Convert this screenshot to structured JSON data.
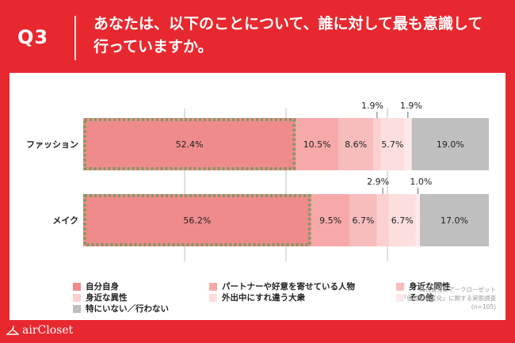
{
  "header": {
    "question_label": "Q3",
    "question_line1": "あなたは、以下のことについて、誰に対して最も意識して",
    "question_line2": "行っていますか。"
  },
  "chart_data": {
    "type": "bar",
    "orientation": "horizontal",
    "stacked": true,
    "categories": [
      "ファッション",
      "メイク"
    ],
    "series": [
      {
        "name": "自分自身",
        "values": [
          52.4,
          56.2
        ],
        "color": "#f08b8b",
        "highlight": true
      },
      {
        "name": "パートナーや好意を寄せている人物",
        "values": [
          10.5,
          9.5
        ],
        "color": "#f7a9a9"
      },
      {
        "name": "身近な同性",
        "values": [
          8.6,
          6.7
        ],
        "color": "#f7bcbc"
      },
      {
        "name": "身近な異性",
        "values": [
          1.9,
          2.9
        ],
        "color": "#fad0d0"
      },
      {
        "name": "外出中にすれ違う大衆",
        "values": [
          5.7,
          6.7
        ],
        "color": "#fcdede"
      },
      {
        "name": "その他",
        "values": [
          1.9,
          1.0
        ],
        "color": "#fde9e9"
      },
      {
        "name": "特にいない／行わない",
        "values": [
          19.0,
          17.0
        ],
        "color": "#bfbfbf"
      }
    ],
    "labels": [
      [
        "52.4%",
        "10.5%",
        "8.6%",
        "1.9%",
        "5.7%",
        "1.9%",
        "19.0%"
      ],
      [
        "56.2%",
        "9.5%",
        "6.7%",
        "2.9%",
        "6.7%",
        "1.0%",
        "17.0%"
      ]
    ],
    "xlim": [
      0,
      100
    ],
    "legend_position": "bottom",
    "grid": true,
    "highlight_style": "dotted-green-border"
  },
  "legend_items": [
    {
      "label": "自分自身",
      "color": "#f08b8b"
    },
    {
      "label": "パートナーや好意を寄せている人物",
      "color": "#f7a9a9"
    },
    {
      "label": "身近な同性",
      "color": "#f7bcbc"
    },
    {
      "label": "身近な異性",
      "color": "#fad0d0"
    },
    {
      "label": "外出中にすれ違う大衆",
      "color": "#fcdede"
    },
    {
      "label": "その他",
      "color": "#fde9e9"
    },
    {
      "label": "特にいない／行わない",
      "color": "#bfbfbf"
    }
  ],
  "source": {
    "line1": "株式会社エアークローゼット",
    "line2": "「価値観の変化」に関する実態調査",
    "line3": "(n=105)"
  },
  "brand": {
    "name": "airCloset"
  }
}
